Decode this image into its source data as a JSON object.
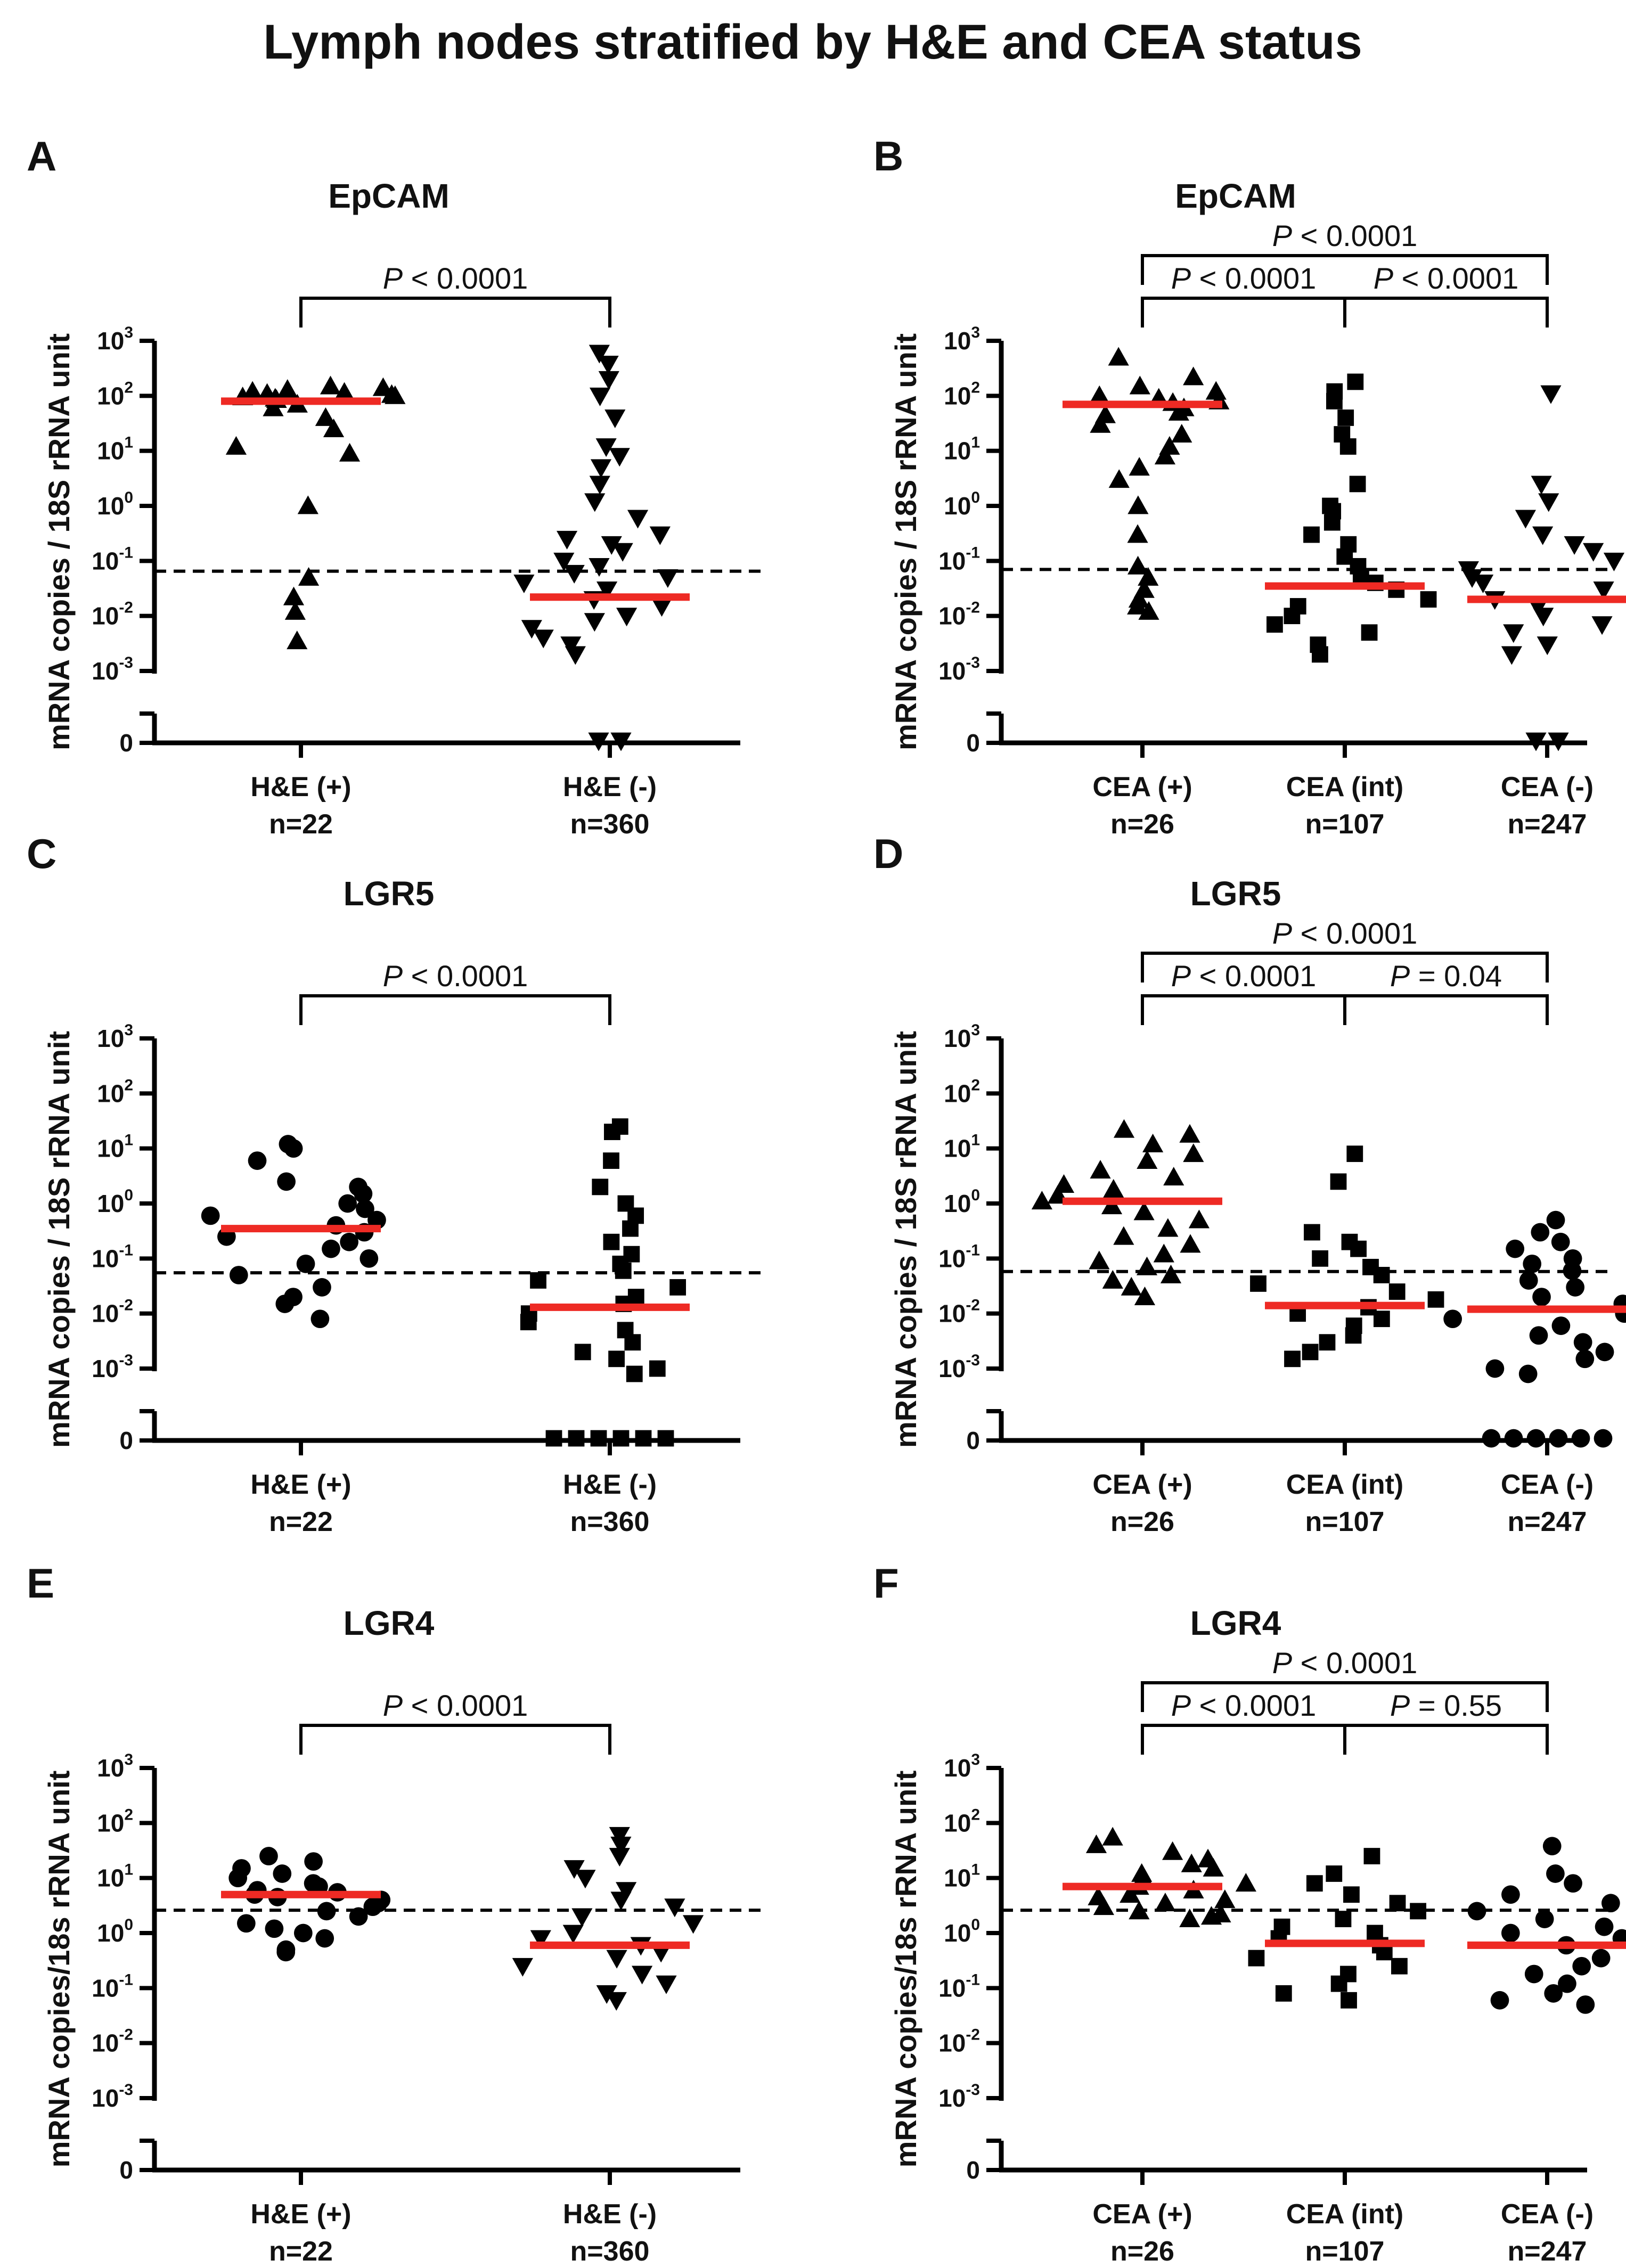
{
  "title": "Lymph nodes stratified by H&E and CEA status",
  "colors": {
    "marker": "#000000",
    "median": "#ee2a24",
    "axis": "#000000",
    "threshold": "#000000"
  },
  "chart_data": [
    {
      "panel": "A",
      "type": "scatter",
      "title": "EpCAM",
      "ylabel": "mRNA copies / 18S rRNA unit",
      "yscale": "log",
      "ylim": [
        0.001,
        1000
      ],
      "yticks": [
        "10^3",
        "10^2",
        "10^1",
        "10^0",
        "10^-1",
        "10^-2",
        "10^-3",
        "0"
      ],
      "threshold": 0.065,
      "groups": [
        {
          "label": "H&E (+)",
          "n": "n=22",
          "marker": "triangle-up",
          "median": 80,
          "values": [
            110,
            95,
            140,
            85,
            150,
            120,
            100,
            130,
            90,
            70,
            105,
            115,
            60,
            40,
            25,
            12,
            9,
            1.0,
            0.05,
            0.022,
            0.012,
            0.0035
          ],
          "zeros": 0
        },
        {
          "label": "H&E (-)",
          "n": "n=360",
          "marker": "triangle-down",
          "median": 0.022,
          "values": [
            600,
            380,
            200,
            100,
            40,
            12,
            8,
            5,
            2.5,
            1.2,
            0.6,
            0.3,
            0.25,
            0.2,
            0.15,
            0.1,
            0.08,
            0.06,
            0.05,
            0.04,
            0.03,
            0.02,
            0.015,
            0.01,
            0.008,
            0.006,
            0.004,
            0.003,
            0.002
          ],
          "zeros": 2
        }
      ],
      "comparisons": [
        {
          "from": 0,
          "to": 1,
          "label": "P < 0.0001"
        }
      ]
    },
    {
      "panel": "B",
      "type": "scatter",
      "title": "EpCAM",
      "ylabel": "mRNA copies / 18S rRNA unit",
      "yscale": "log",
      "ylim": [
        0.001,
        1000
      ],
      "yticks": [
        "10^3",
        "10^2",
        "10^1",
        "10^0",
        "10^-1",
        "10^-2",
        "10^-3",
        "0"
      ],
      "threshold": 0.07,
      "groups": [
        {
          "label": "CEA (+)",
          "n": "n=26",
          "marker": "triangle-up",
          "median": 70,
          "values": [
            500,
            220,
            150,
            120,
            100,
            90,
            80,
            75,
            60,
            50,
            45,
            30,
            20,
            12,
            8,
            5,
            3,
            1.0,
            0.3,
            0.08,
            0.05,
            0.03,
            0.02,
            0.015,
            0.012
          ],
          "zeros": 0
        },
        {
          "label": "CEA (int)",
          "n": "n=107",
          "marker": "square",
          "median": 0.035,
          "values": [
            180,
            120,
            80,
            40,
            20,
            12,
            2.5,
            1.0,
            0.8,
            0.5,
            0.3,
            0.2,
            0.12,
            0.08,
            0.05,
            0.04,
            0.03,
            0.02,
            0.015,
            0.01,
            0.007,
            0.005,
            0.003,
            0.002
          ],
          "zeros": 0
        },
        {
          "label": "CEA (-)",
          "n": "n=247",
          "marker": "triangle-down",
          "median": 0.02,
          "values": [
            110,
            2.5,
            1.2,
            0.6,
            0.3,
            0.2,
            0.15,
            0.1,
            0.07,
            0.05,
            0.04,
            0.03,
            0.02,
            0.015,
            0.01,
            0.007,
            0.005,
            0.003,
            0.002
          ],
          "zeros": 2
        }
      ],
      "comparisons": [
        {
          "from": 0,
          "to": 2,
          "label": "P < 0.0001"
        },
        {
          "from": 0,
          "to": 1,
          "label": "P < 0.0001"
        },
        {
          "from": 1,
          "to": 2,
          "label": "P < 0.0001"
        }
      ]
    },
    {
      "panel": "C",
      "type": "scatter",
      "title": "LGR5",
      "ylabel": "mRNA copies / 18S rRNA unit",
      "yscale": "log",
      "ylim": [
        0.001,
        1000
      ],
      "yticks": [
        "10^3",
        "10^2",
        "10^1",
        "10^0",
        "10^-1",
        "10^-2",
        "10^-3",
        "0"
      ],
      "threshold": 0.055,
      "groups": [
        {
          "label": "H&E (+)",
          "n": "n=22",
          "marker": "circle",
          "median": 0.35,
          "values": [
            12,
            10,
            6,
            2.5,
            2.0,
            1.5,
            1.0,
            0.8,
            0.6,
            0.5,
            0.4,
            0.3,
            0.25,
            0.2,
            0.15,
            0.1,
            0.08,
            0.05,
            0.03,
            0.02,
            0.015,
            0.008
          ],
          "zeros": 0
        },
        {
          "label": "H&E (-)",
          "n": "n=360",
          "marker": "square",
          "median": 0.013,
          "values": [
            25,
            20,
            6,
            2.0,
            1.0,
            0.6,
            0.35,
            0.2,
            0.12,
            0.08,
            0.06,
            0.04,
            0.03,
            0.02,
            0.015,
            0.01,
            0.007,
            0.005,
            0.003,
            0.002,
            0.0015,
            0.001,
            0.0008
          ],
          "zeros": 6
        }
      ],
      "comparisons": [
        {
          "from": 0,
          "to": 1,
          "label": "P < 0.0001"
        }
      ]
    },
    {
      "panel": "D",
      "type": "scatter",
      "title": "LGR5",
      "ylabel": "mRNA copies / 18S rRNA unit",
      "yscale": "log",
      "ylim": [
        0.001,
        1000
      ],
      "yticks": [
        "10^3",
        "10^2",
        "10^1",
        "10^0",
        "10^-1",
        "10^-2",
        "10^-3",
        "0"
      ],
      "threshold": 0.058,
      "groups": [
        {
          "label": "CEA (+)",
          "n": "n=26",
          "marker": "triangle-up",
          "median": 1.1,
          "values": [
            22,
            18,
            12,
            8,
            6,
            4,
            3,
            2.2,
            1.8,
            1.4,
            1.1,
            0.9,
            0.7,
            0.5,
            0.35,
            0.25,
            0.18,
            0.12,
            0.09,
            0.07,
            0.05,
            0.04,
            0.03,
            0.02
          ],
          "zeros": 0
        },
        {
          "label": "CEA (int)",
          "n": "n=107",
          "marker": "square",
          "median": 0.014,
          "values": [
            8,
            2.5,
            0.3,
            0.2,
            0.15,
            0.1,
            0.07,
            0.05,
            0.035,
            0.025,
            0.018,
            0.013,
            0.01,
            0.008,
            0.006,
            0.004,
            0.003,
            0.002,
            0.0015
          ],
          "zeros": 0
        },
        {
          "label": "CEA (-)",
          "n": "n=247",
          "marker": "circle",
          "median": 0.012,
          "values": [
            0.5,
            0.3,
            0.2,
            0.15,
            0.1,
            0.08,
            0.06,
            0.04,
            0.03,
            0.02,
            0.015,
            0.01,
            0.008,
            0.006,
            0.004,
            0.003,
            0.002,
            0.0015,
            0.001,
            0.0008
          ],
          "zeros": 6
        }
      ],
      "comparisons": [
        {
          "from": 0,
          "to": 2,
          "label": "P < 0.0001"
        },
        {
          "from": 0,
          "to": 1,
          "label": "P < 0.0001"
        },
        {
          "from": 1,
          "to": 2,
          "label": "P = 0.04"
        }
      ]
    },
    {
      "panel": "E",
      "type": "scatter",
      "title": "LGR4",
      "ylabel": "mRNA copies/18s rRNA unit",
      "yscale": "log",
      "ylim": [
        0.001,
        1000
      ],
      "yticks": [
        "10^3",
        "10^2",
        "10^1",
        "10^0",
        "10^-1",
        "10^-2",
        "10^-3",
        "0"
      ],
      "threshold": 2.6,
      "groups": [
        {
          "label": "H&E (+)",
          "n": "n=22",
          "marker": "circle",
          "median": 5.0,
          "values": [
            25,
            20,
            15,
            12,
            10,
            8,
            7,
            6,
            5.5,
            5,
            4.5,
            4,
            3.5,
            3,
            2.5,
            2,
            1.5,
            1.2,
            1.0,
            0.8,
            0.5,
            0.45
          ],
          "zeros": 0
        },
        {
          "label": "H&E (-)",
          "n": "n=360",
          "marker": "triangle-down",
          "median": 0.6,
          "values": [
            60,
            40,
            25,
            15,
            10,
            6,
            4,
            3,
            2,
            1.5,
            1.0,
            0.8,
            0.6,
            0.45,
            0.35,
            0.25,
            0.18,
            0.12,
            0.08,
            0.06
          ],
          "zeros": 0
        }
      ],
      "comparisons": [
        {
          "from": 0,
          "to": 1,
          "label": "P < 0.0001"
        }
      ]
    },
    {
      "panel": "F",
      "type": "scatter",
      "title": "LGR4",
      "ylabel": "mRNA copies/18s rRNA unit",
      "yscale": "log",
      "ylim": [
        0.001,
        1000
      ],
      "yticks": [
        "10^3",
        "10^2",
        "10^1",
        "10^0",
        "10^-1",
        "10^-2",
        "10^-3",
        "0"
      ],
      "threshold": 2.6,
      "groups": [
        {
          "label": "CEA (+)",
          "n": "n=26",
          "marker": "triangle-up",
          "median": 7.0,
          "values": [
            55,
            40,
            30,
            22,
            18,
            15,
            12,
            10,
            8,
            7,
            6,
            5,
            4.5,
            4,
            3.5,
            3,
            2.5,
            2.2,
            2.0,
            1.8
          ],
          "zeros": 0
        },
        {
          "label": "CEA (int)",
          "n": "n=107",
          "marker": "square",
          "median": 0.65,
          "values": [
            25,
            12,
            8,
            5,
            3.5,
            2.5,
            1.8,
            1.3,
            1.0,
            0.8,
            0.6,
            0.45,
            0.35,
            0.25,
            0.18,
            0.12,
            0.08,
            0.06
          ],
          "zeros": 0
        },
        {
          "label": "CEA (-)",
          "n": "n=247",
          "marker": "circle",
          "median": 0.6,
          "values": [
            38,
            12,
            8,
            5,
            3.5,
            2.5,
            1.8,
            1.3,
            1.0,
            0.8,
            0.6,
            0.45,
            0.35,
            0.25,
            0.18,
            0.12,
            0.08,
            0.06,
            0.05
          ],
          "zeros": 0
        }
      ],
      "comparisons": [
        {
          "from": 0,
          "to": 2,
          "label": "P < 0.0001"
        },
        {
          "from": 0,
          "to": 1,
          "label": "P < 0.0001"
        },
        {
          "from": 1,
          "to": 2,
          "label": "P = 0.55"
        }
      ]
    }
  ]
}
